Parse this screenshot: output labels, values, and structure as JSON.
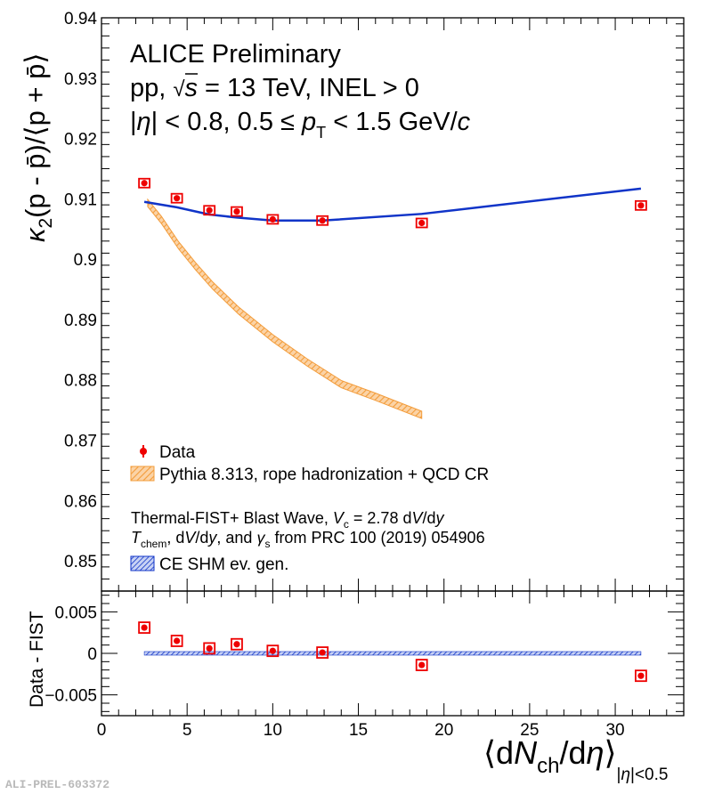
{
  "chart_data": {
    "type": "scatter",
    "footer_label": "ALI-PREL-603372",
    "annotations": {
      "line1": "ALICE Preliminary",
      "line2_a": "pp,",
      "line2_s": "s",
      "line2_b": " = 13 TeV, INEL > 0",
      "line3_a": "|",
      "line3_eta": "η",
      "line3_b": "| < 0.8, 0.5 ≤ ",
      "line3_p": "p",
      "line3_T": "T",
      "line3_c": " < 1.5 GeV/",
      "line3_cc": "c"
    },
    "top_panel": {
      "ylabel_kappa": "κ",
      "ylabel_sub": "2",
      "ylabel_rest": "(p - p̄)/⟨p + p̄⟩",
      "ylim": [
        0.845,
        0.94
      ],
      "yticks": [
        0.85,
        0.86,
        0.87,
        0.88,
        0.89,
        0.9,
        0.91,
        0.92,
        0.93,
        0.94
      ],
      "ytick_labels": [
        "0.85",
        "0.86",
        "0.87",
        "0.88",
        "0.89",
        "0.9",
        "0.91",
        "0.92",
        "0.93",
        "0.94"
      ],
      "series": [
        {
          "name": "Data",
          "kind": "points",
          "color": "#ee0000",
          "x": [
            2.5,
            4.4,
            6.3,
            7.9,
            10.0,
            12.9,
            18.7,
            31.5
          ],
          "y": [
            0.9126,
            0.9101,
            0.9081,
            0.9079,
            0.9066,
            0.9064,
            0.906,
            0.9089
          ]
        },
        {
          "name": "Pythia 8.313, rope hadronization + QCD CR",
          "kind": "band",
          "color": "#f39c3a",
          "x": [
            2.7,
            3.5,
            4.5,
            5.5,
            6.5,
            8.0,
            10.0,
            12.0,
            14.0,
            16.0,
            18.7
          ],
          "y": [
            0.9093,
            0.9065,
            0.9023,
            0.8988,
            0.8956,
            0.8915,
            0.8869,
            0.8829,
            0.8793,
            0.8772,
            0.8742
          ],
          "half_width": 0.0006
        },
        {
          "name": "CE SHM ev. gen.",
          "kind": "line",
          "color": "#1034c8",
          "x": [
            2.5,
            4.4,
            6.3,
            7.9,
            10.0,
            12.9,
            18.7,
            31.5
          ],
          "y": [
            0.9095,
            0.9086,
            0.9074,
            0.9069,
            0.9064,
            0.9064,
            0.9075,
            0.9117
          ]
        }
      ],
      "legend": {
        "data_label": "Data",
        "pythia_label": "Pythia 8.313, rope hadronization + QCD CR",
        "fist_line1_a": "Thermal-FIST+ Blast Wave, ",
        "fist_line1_V": "V",
        "fist_line1_c": "c",
        "fist_line1_b": " = 2.78 d",
        "fist_line1_V2": "V",
        "fist_line1_d": "/d",
        "fist_line1_y": "y",
        "fist_line2_T": "T",
        "fist_line2_chem": "chem",
        "fist_line2_a": ", d",
        "fist_line2_V": "V",
        "fist_line2_b": "/d",
        "fist_line2_y": "y",
        "fist_line2_c": ", and ",
        "fist_line2_gamma": "γ",
        "fist_line2_s": "s",
        "fist_line2_d": " from PRC 100 (2019) 054906",
        "shm_label": "CE SHM ev. gen."
      }
    },
    "bottom_panel": {
      "ylabel": "Data - FIST",
      "ylim": [
        -0.0075,
        0.0075
      ],
      "yticks": [
        -0.005,
        0,
        0.005
      ],
      "ytick_labels": [
        "−0.005",
        "0",
        "0.005"
      ],
      "series": [
        {
          "name": "Data - FIST",
          "kind": "points",
          "color": "#ee0000",
          "x": [
            2.5,
            4.4,
            6.3,
            7.9,
            10.0,
            12.9,
            18.7,
            31.5
          ],
          "y": [
            0.0031,
            0.0015,
            0.0006,
            0.0011,
            0.0003,
            0.0001,
            -0.0014,
            -0.0027
          ]
        },
        {
          "name": "CE SHM ev. gen.",
          "kind": "band",
          "color": "#1034c8",
          "x": [
            2.5,
            31.5
          ],
          "y": [
            0,
            0
          ]
        }
      ]
    },
    "x_axis": {
      "xlim": [
        0,
        34
      ],
      "xticks": [
        0,
        5,
        10,
        15,
        20,
        25,
        30
      ],
      "xtick_labels": [
        "0",
        "5",
        "10",
        "15",
        "20",
        "25",
        "30"
      ],
      "xlabel_open": "⟨d",
      "xlabel_N": "N",
      "xlabel_ch": "ch",
      "xlabel_mid": "/d",
      "xlabel_eta": "η",
      "xlabel_close": "⟩",
      "xlabel_sub_a": "|",
      "xlabel_sub_eta": "η",
      "xlabel_sub_b": "|<0.5"
    }
  }
}
